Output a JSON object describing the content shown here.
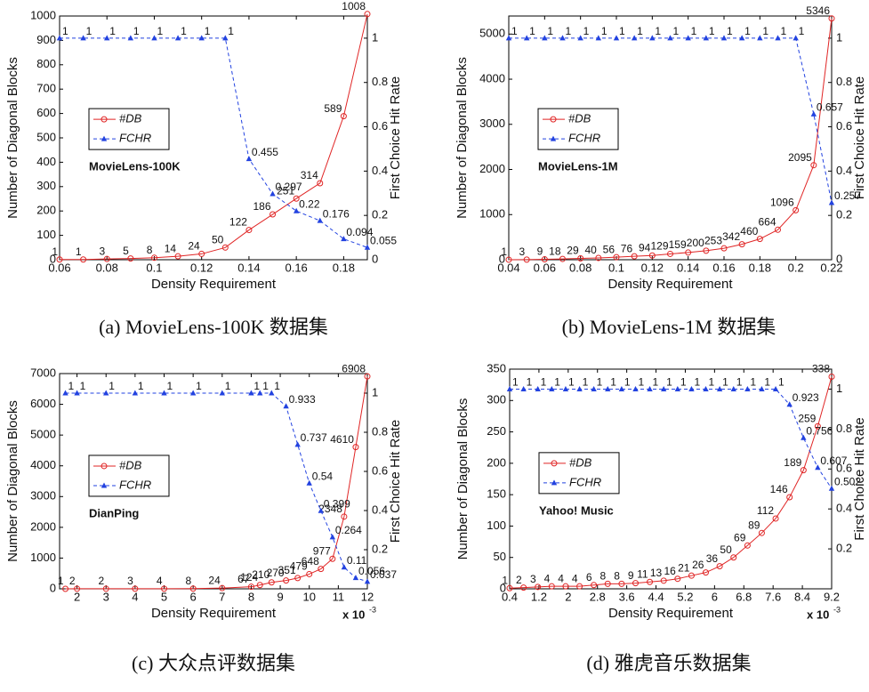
{
  "chart_data": [
    {
      "type": "line",
      "title": "MovieLens-100K",
      "caption": "(a) MovieLens-100K 数据集",
      "xlabel": "Density Requirement",
      "ylabel": "Number of Diagonal Blocks",
      "y2label": "First Choice Hit Rate",
      "x": [
        0.06,
        0.07,
        0.08,
        0.09,
        0.1,
        0.11,
        0.12,
        0.13,
        0.14,
        0.15,
        0.16,
        0.17,
        0.18,
        0.19
      ],
      "series": [
        {
          "name": "#DB",
          "color": "#e02525",
          "marker": "circle",
          "line_style": "solid",
          "values": [
            1,
            1,
            3,
            5,
            8,
            14,
            24,
            50,
            122,
            186,
            251,
            314,
            589,
            1008
          ]
        },
        {
          "name": "FCHR",
          "color": "#2242e0",
          "marker": "triangle",
          "line_style": "dashed",
          "axis": "y2",
          "values": [
            1,
            1,
            1,
            1,
            1,
            1,
            1,
            1,
            0.455,
            0.297,
            0.22,
            0.176,
            0.094,
            0.055
          ]
        }
      ],
      "xlim": [
        0.06,
        0.19
      ],
      "xticks": [
        0.06,
        0.08,
        0.1,
        0.12,
        0.14,
        0.16,
        0.18
      ],
      "ylim": [
        0,
        1000
      ],
      "yticks": [
        0,
        100,
        200,
        300,
        400,
        500,
        600,
        700,
        800,
        900,
        1000
      ],
      "y2lim": [
        0,
        1.1
      ],
      "y2ticks": [
        0,
        0.2,
        0.4,
        0.6,
        0.8,
        1
      ],
      "legend": "center left"
    },
    {
      "type": "line",
      "title": "MovieLens-1M",
      "caption": "(b) MovieLens-1M 数据集",
      "xlabel": "Density Requirement",
      "ylabel": "Number of Diagonal Blocks",
      "y2label": "First Choice Hit Rate",
      "x": [
        0.04,
        0.05,
        0.06,
        0.07,
        0.08,
        0.09,
        0.1,
        0.11,
        0.12,
        0.13,
        0.14,
        0.15,
        0.16,
        0.17,
        0.18,
        0.19,
        0.2,
        0.21,
        0.22
      ],
      "series": [
        {
          "name": "#DB",
          "color": "#e02525",
          "marker": "circle",
          "line_style": "solid",
          "values": [
            1,
            3,
            9,
            18,
            29,
            40,
            56,
            76,
            94,
            129,
            159,
            200,
            253,
            342,
            460,
            664,
            1096,
            2095,
            5346
          ]
        },
        {
          "name": "FCHR",
          "color": "#2242e0",
          "marker": "triangle",
          "line_style": "dashed",
          "axis": "y2",
          "values": [
            1,
            1,
            1,
            1,
            1,
            1,
            1,
            1,
            1,
            1,
            1,
            1,
            1,
            1,
            1,
            1,
            1,
            0.657,
            0.257
          ]
        }
      ],
      "xlim": [
        0.04,
        0.22
      ],
      "xticks": [
        0.04,
        0.06,
        0.08,
        0.1,
        0.12,
        0.14,
        0.16,
        0.18,
        0.2,
        0.22
      ],
      "ylim": [
        0,
        5400
      ],
      "yticks": [
        0,
        1000,
        2000,
        3000,
        4000,
        5000
      ],
      "y2lim": [
        0,
        1.1
      ],
      "y2ticks": [
        0,
        0.2,
        0.4,
        0.6,
        0.8,
        1
      ],
      "legend": "center left"
    },
    {
      "type": "line",
      "title": "DianPing",
      "caption": "(c) 大众点评数据集",
      "xlabel": "Density Requirement",
      "ylabel": "Number of Diagonal Blocks",
      "y2label": "First Choice Hit Rate",
      "x_scale_label": "x 10",
      "x_scale_exponent": "-3",
      "x": [
        1.6,
        2,
        3,
        4,
        5,
        6,
        7,
        8,
        8.3,
        8.7,
        9.2,
        9.6,
        10,
        10.4,
        10.8,
        11.2,
        11.6,
        12
      ],
      "series": [
        {
          "name": "#DB",
          "color": "#e02525",
          "marker": "circle",
          "line_style": "solid",
          "values": [
            1,
            2,
            2,
            3,
            4,
            8,
            24,
            67,
            124,
            210,
            270,
            351,
            479,
            648,
            977,
            2348,
            4610,
            6908
          ]
        },
        {
          "name": "FCHR",
          "color": "#2242e0",
          "marker": "triangle",
          "line_style": "dashed",
          "axis": "y2",
          "values": [
            1,
            1,
            1,
            1,
            1,
            1,
            1,
            1,
            1,
            1,
            0.933,
            0.737,
            0.54,
            0.399,
            0.264,
            0.11,
            0.056,
            0.037
          ]
        }
      ],
      "xlim": [
        1.4,
        12
      ],
      "xticks": [
        2,
        3,
        4,
        5,
        6,
        7,
        8,
        9,
        10,
        11,
        12
      ],
      "ylim": [
        0,
        7000
      ],
      "yticks": [
        0,
        1000,
        2000,
        3000,
        4000,
        5000,
        6000,
        7000
      ],
      "y2lim": [
        0,
        1.1
      ],
      "y2ticks": [
        0.2,
        0.4,
        0.6,
        0.8,
        1
      ],
      "legend": "center left"
    },
    {
      "type": "line",
      "title": "Yahoo! Music",
      "caption": "(d) 雅虎音乐数据集",
      "xlabel": "Density Requirement",
      "ylabel": "Number of Diagonal Blocks",
      "y2label": "First Choice Hit Rate",
      "x_scale_label": "x 10",
      "x_scale_exponent": "-3",
      "x": [
        0.4,
        0.78,
        1.17,
        1.55,
        1.93,
        2.31,
        2.7,
        3.08,
        3.46,
        3.84,
        4.23,
        4.61,
        4.99,
        5.37,
        5.76,
        6.14,
        6.52,
        6.9,
        7.29,
        7.67,
        8.05,
        8.43,
        8.82,
        9.2
      ],
      "series": [
        {
          "name": "#DB",
          "color": "#e02525",
          "marker": "circle",
          "line_style": "solid",
          "values": [
            1,
            2,
            3,
            4,
            4,
            4,
            6,
            8,
            8,
            9,
            11,
            13,
            16,
            21,
            26,
            36,
            50,
            69,
            89,
            112,
            146,
            189,
            259,
            338
          ]
        },
        {
          "name": "FCHR",
          "color": "#2242e0",
          "marker": "triangle",
          "line_style": "dashed",
          "axis": "y2",
          "values": [
            1,
            1,
            1,
            1,
            1,
            1,
            1,
            1,
            1,
            1,
            1,
            1,
            1,
            1,
            1,
            1,
            1,
            1,
            1,
            1,
            0.923,
            0.756,
            0.607,
            0.502
          ]
        }
      ],
      "xlim": [
        0.4,
        9.2
      ],
      "xticks": [
        0.4,
        1.2,
        2,
        2.8,
        3.6,
        4.4,
        5.2,
        6,
        6.8,
        7.6,
        8.4,
        9.2
      ],
      "ylim": [
        0,
        350
      ],
      "yticks": [
        0,
        50,
        100,
        150,
        200,
        250,
        300,
        350
      ],
      "y2lim": [
        0,
        1.1
      ],
      "y2ticks": [
        0.2,
        0.4,
        0.6,
        0.8,
        1
      ],
      "legend": "center left"
    }
  ]
}
